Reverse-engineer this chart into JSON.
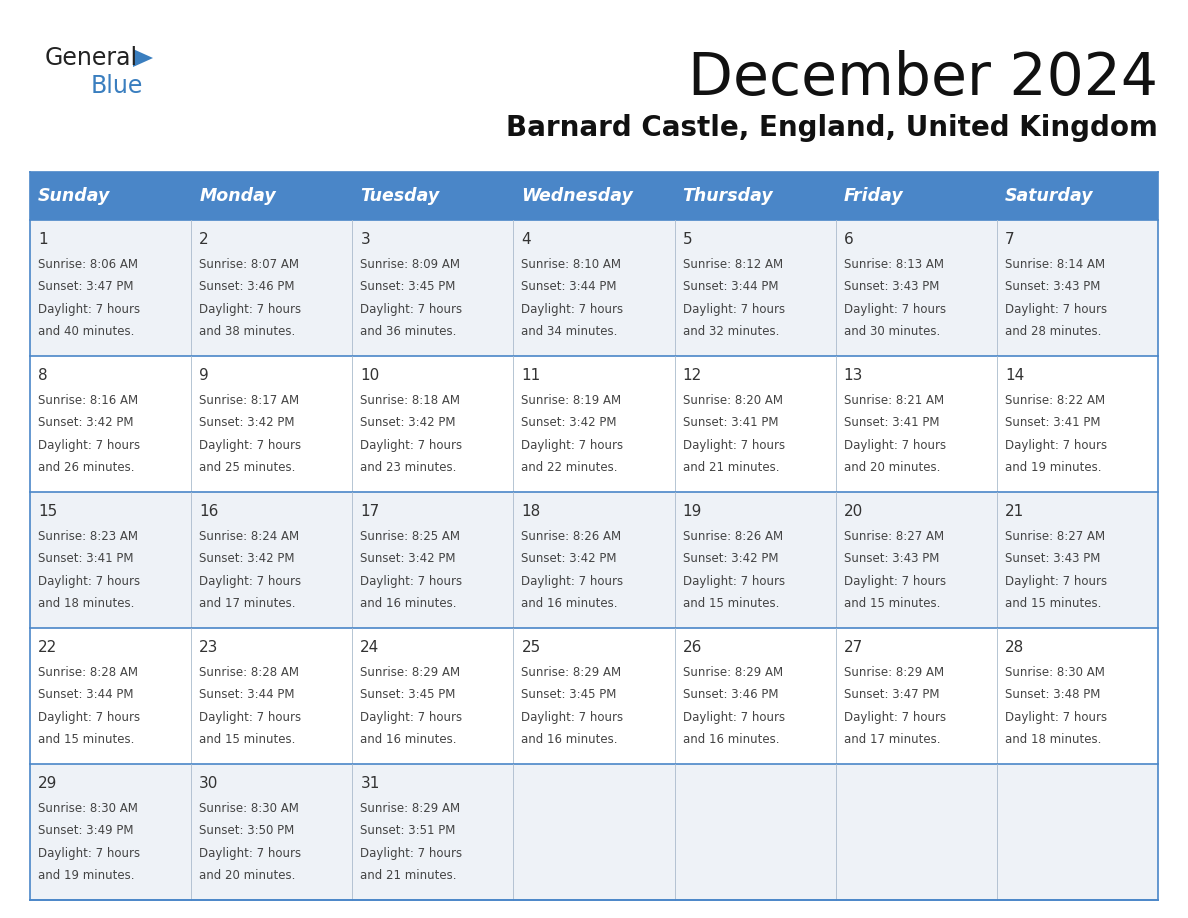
{
  "title": "December 2024",
  "subtitle": "Barnard Castle, England, United Kingdom",
  "days_of_week": [
    "Sunday",
    "Monday",
    "Tuesday",
    "Wednesday",
    "Thursday",
    "Friday",
    "Saturday"
  ],
  "header_bg": "#4a86c8",
  "header_text_color": "#ffffff",
  "row_bg_odd": "#eef2f7",
  "row_bg_even": "#ffffff",
  "border_color": "#4a86c8",
  "sep_color": "#aabbcc",
  "day_number_color": "#333333",
  "cell_text_color": "#444444",
  "title_color": "#111111",
  "subtitle_color": "#111111",
  "logo_general_color": "#222222",
  "logo_blue_color": "#3a7ebf",
  "weeks": [
    [
      {
        "day": 1,
        "sunrise": "8:06 AM",
        "sunset": "3:47 PM",
        "daylight": "7 hours and 40 minutes."
      },
      {
        "day": 2,
        "sunrise": "8:07 AM",
        "sunset": "3:46 PM",
        "daylight": "7 hours and 38 minutes."
      },
      {
        "day": 3,
        "sunrise": "8:09 AM",
        "sunset": "3:45 PM",
        "daylight": "7 hours and 36 minutes."
      },
      {
        "day": 4,
        "sunrise": "8:10 AM",
        "sunset": "3:44 PM",
        "daylight": "7 hours and 34 minutes."
      },
      {
        "day": 5,
        "sunrise": "8:12 AM",
        "sunset": "3:44 PM",
        "daylight": "7 hours and 32 minutes."
      },
      {
        "day": 6,
        "sunrise": "8:13 AM",
        "sunset": "3:43 PM",
        "daylight": "7 hours and 30 minutes."
      },
      {
        "day": 7,
        "sunrise": "8:14 AM",
        "sunset": "3:43 PM",
        "daylight": "7 hours and 28 minutes."
      }
    ],
    [
      {
        "day": 8,
        "sunrise": "8:16 AM",
        "sunset": "3:42 PM",
        "daylight": "7 hours and 26 minutes."
      },
      {
        "day": 9,
        "sunrise": "8:17 AM",
        "sunset": "3:42 PM",
        "daylight": "7 hours and 25 minutes."
      },
      {
        "day": 10,
        "sunrise": "8:18 AM",
        "sunset": "3:42 PM",
        "daylight": "7 hours and 23 minutes."
      },
      {
        "day": 11,
        "sunrise": "8:19 AM",
        "sunset": "3:42 PM",
        "daylight": "7 hours and 22 minutes."
      },
      {
        "day": 12,
        "sunrise": "8:20 AM",
        "sunset": "3:41 PM",
        "daylight": "7 hours and 21 minutes."
      },
      {
        "day": 13,
        "sunrise": "8:21 AM",
        "sunset": "3:41 PM",
        "daylight": "7 hours and 20 minutes."
      },
      {
        "day": 14,
        "sunrise": "8:22 AM",
        "sunset": "3:41 PM",
        "daylight": "7 hours and 19 minutes."
      }
    ],
    [
      {
        "day": 15,
        "sunrise": "8:23 AM",
        "sunset": "3:41 PM",
        "daylight": "7 hours and 18 minutes."
      },
      {
        "day": 16,
        "sunrise": "8:24 AM",
        "sunset": "3:42 PM",
        "daylight": "7 hours and 17 minutes."
      },
      {
        "day": 17,
        "sunrise": "8:25 AM",
        "sunset": "3:42 PM",
        "daylight": "7 hours and 16 minutes."
      },
      {
        "day": 18,
        "sunrise": "8:26 AM",
        "sunset": "3:42 PM",
        "daylight": "7 hours and 16 minutes."
      },
      {
        "day": 19,
        "sunrise": "8:26 AM",
        "sunset": "3:42 PM",
        "daylight": "7 hours and 15 minutes."
      },
      {
        "day": 20,
        "sunrise": "8:27 AM",
        "sunset": "3:43 PM",
        "daylight": "7 hours and 15 minutes."
      },
      {
        "day": 21,
        "sunrise": "8:27 AM",
        "sunset": "3:43 PM",
        "daylight": "7 hours and 15 minutes."
      }
    ],
    [
      {
        "day": 22,
        "sunrise": "8:28 AM",
        "sunset": "3:44 PM",
        "daylight": "7 hours and 15 minutes."
      },
      {
        "day": 23,
        "sunrise": "8:28 AM",
        "sunset": "3:44 PM",
        "daylight": "7 hours and 15 minutes."
      },
      {
        "day": 24,
        "sunrise": "8:29 AM",
        "sunset": "3:45 PM",
        "daylight": "7 hours and 16 minutes."
      },
      {
        "day": 25,
        "sunrise": "8:29 AM",
        "sunset": "3:45 PM",
        "daylight": "7 hours and 16 minutes."
      },
      {
        "day": 26,
        "sunrise": "8:29 AM",
        "sunset": "3:46 PM",
        "daylight": "7 hours and 16 minutes."
      },
      {
        "day": 27,
        "sunrise": "8:29 AM",
        "sunset": "3:47 PM",
        "daylight": "7 hours and 17 minutes."
      },
      {
        "day": 28,
        "sunrise": "8:30 AM",
        "sunset": "3:48 PM",
        "daylight": "7 hours and 18 minutes."
      }
    ],
    [
      {
        "day": 29,
        "sunrise": "8:30 AM",
        "sunset": "3:49 PM",
        "daylight": "7 hours and 19 minutes."
      },
      {
        "day": 30,
        "sunrise": "8:30 AM",
        "sunset": "3:50 PM",
        "daylight": "7 hours and 20 minutes."
      },
      {
        "day": 31,
        "sunrise": "8:29 AM",
        "sunset": "3:51 PM",
        "daylight": "7 hours and 21 minutes."
      },
      null,
      null,
      null,
      null
    ]
  ]
}
